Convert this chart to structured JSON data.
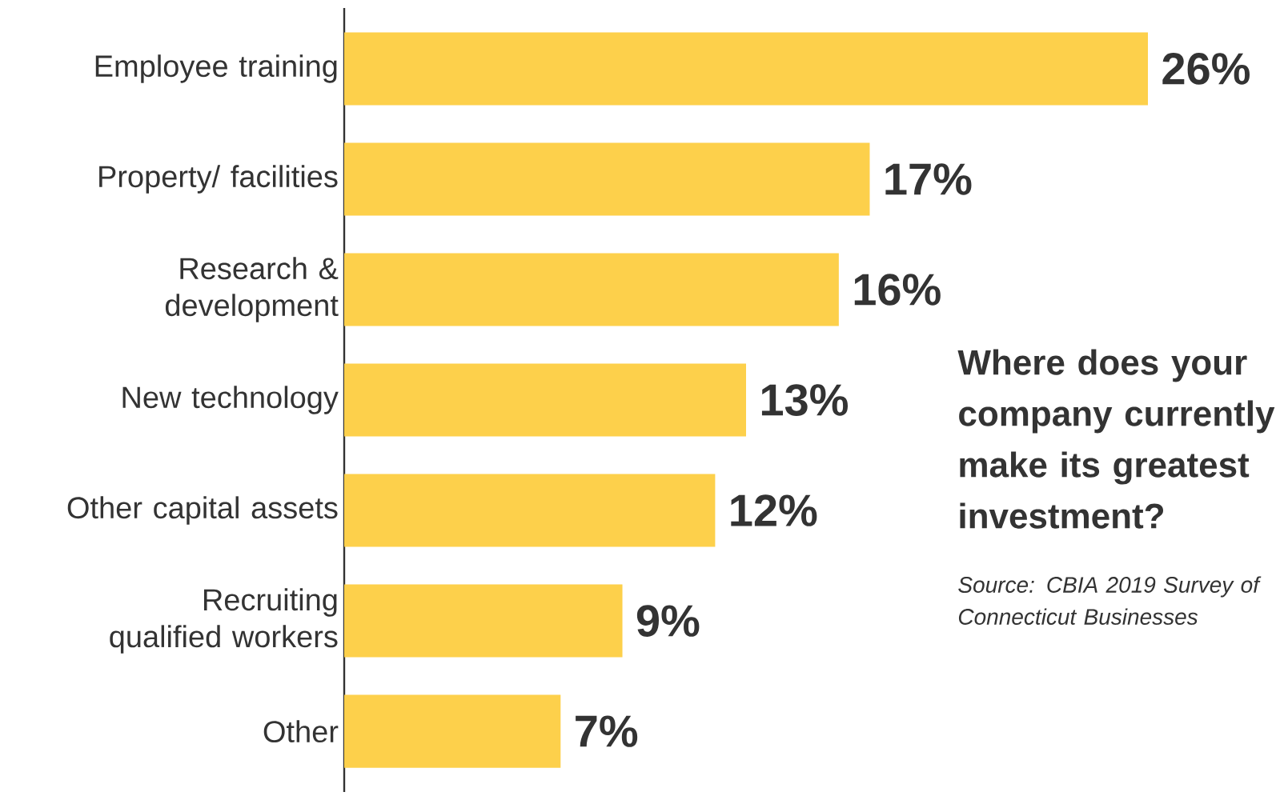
{
  "chart_data": {
    "type": "bar",
    "orientation": "horizontal",
    "title": "Where does your company currently make its greatest investment?",
    "categories": [
      "Employee training",
      "Property/ facilities",
      "Research & development",
      "New technology",
      "Other capital assets",
      "Recruiting qualified workers",
      "Other"
    ],
    "values": [
      26,
      17,
      16,
      13,
      12,
      9,
      7
    ],
    "value_labels": [
      "26%",
      "17%",
      "16%",
      "13%",
      "12%",
      "9%",
      "7%"
    ],
    "color": "#fdd04b",
    "annotations": [
      "Source: CBIA 2019 Survey of Connecticut Businesses"
    ]
  }
}
